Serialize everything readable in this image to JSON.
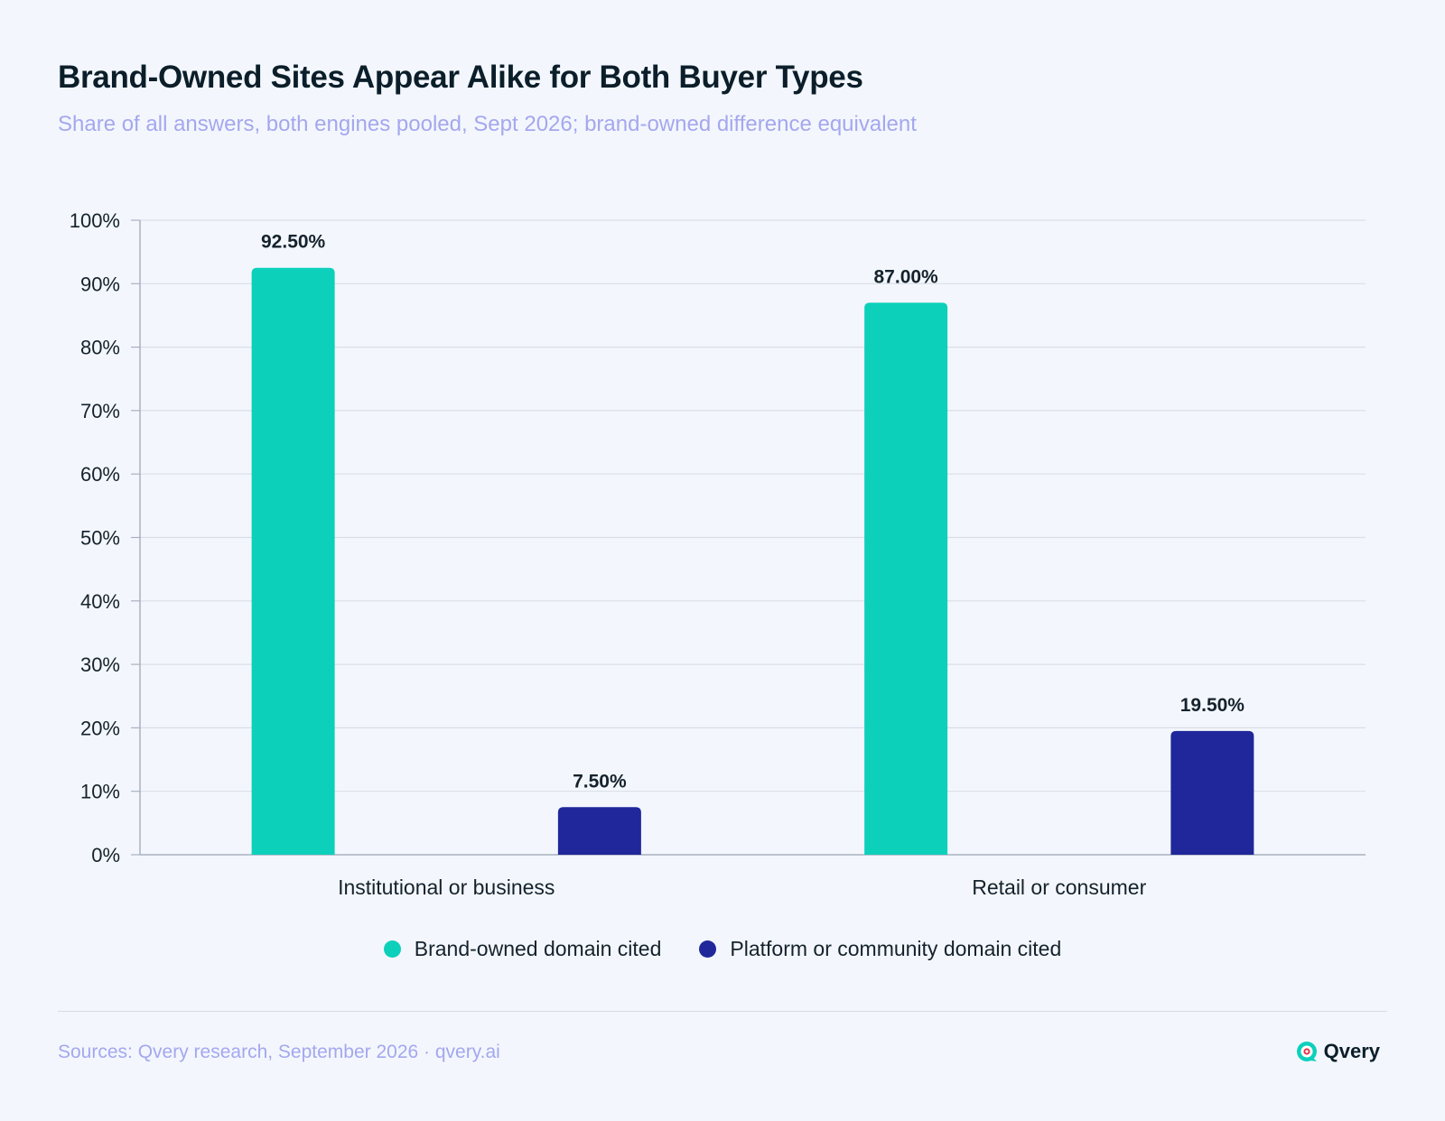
{
  "header": {
    "title": "Brand-Owned Sites Appear Alike for Both Buyer Types",
    "subtitle": "Share of all answers, both engines pooled, Sept 2026; brand-owned difference equivalent"
  },
  "footer": {
    "source": "Sources: Qvery research, September 2026 · qvery.ai",
    "brand_name": "Qvery"
  },
  "colors": {
    "brand_owned": "#0dd0bb",
    "platform": "#20279a",
    "grid": "#d9dee8",
    "axis": "#a9b0c0"
  },
  "chart_data": {
    "type": "bar",
    "title": "Brand-Owned Sites Appear Alike for Both Buyer Types",
    "subtitle": "Share of all answers, both engines pooled, Sept 2026; brand-owned difference equivalent",
    "xlabel": "",
    "ylabel": "",
    "categories": [
      "Institutional or business",
      "Retail or consumer"
    ],
    "series": [
      {
        "name": "Brand-owned domain cited",
        "values": [
          92.5,
          87.0
        ],
        "labels": [
          "92.50%",
          "87.00%"
        ],
        "color": "#0dd0bb"
      },
      {
        "name": "Platform or community domain cited",
        "values": [
          7.5,
          19.5
        ],
        "labels": [
          "7.50%",
          "19.50%"
        ],
        "color": "#20279a"
      }
    ],
    "ylim": [
      0,
      100
    ],
    "yticks": [
      "0%",
      "10%",
      "20%",
      "30%",
      "40%",
      "50%",
      "60%",
      "70%",
      "80%",
      "90%",
      "100%"
    ],
    "grid": true,
    "legend": "bottom-center"
  }
}
